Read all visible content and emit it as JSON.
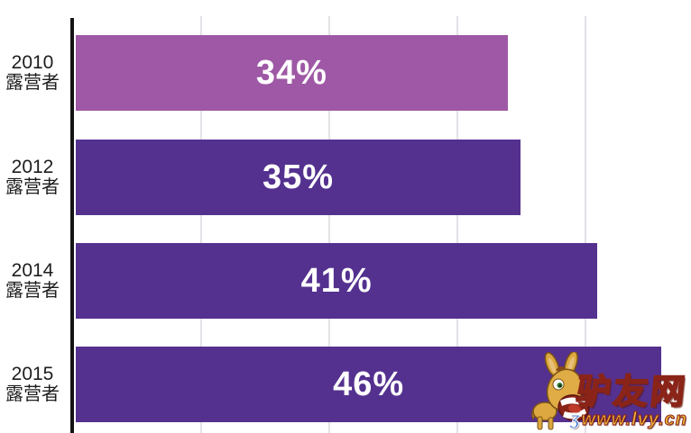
{
  "chart_data": {
    "type": "bar",
    "orientation": "horizontal",
    "title": "",
    "unit": "%",
    "categories": [
      "2010 露营者",
      "2012 露营者",
      "2014 露营者",
      "2015 露营者"
    ],
    "values": [
      34,
      35,
      41,
      46
    ],
    "value_labels": [
      "34%",
      "35%",
      "41%",
      "46%"
    ],
    "bar_colors": [
      "#9E58A5",
      "#54318F",
      "#54318F",
      "#54318F"
    ],
    "xlim": [
      0,
      48
    ],
    "grid": true,
    "gridlines_at_percent": [
      10,
      20,
      30,
      40
    ],
    "legend": false,
    "value_label_color": "#FFFFFF",
    "category_label_color": "#1D1D1D",
    "axis_color": "#141414",
    "gridline_color": "#E2E2E7"
  },
  "watermark": {
    "site_name": "驴友网",
    "site_url": "www.lvy.cn",
    "text_color": "#EDBA3A",
    "outline_color": "#8A2418",
    "mascot": "donkey-mascot"
  }
}
